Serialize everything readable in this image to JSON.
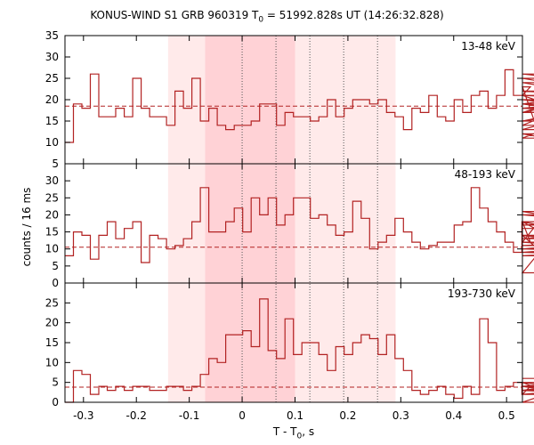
{
  "title": {
    "prefix": "KONUS-WIND S1 GRB 960319 T",
    "sub": "0",
    "suffix": " = 51992.828s UT (14:26:32.828)"
  },
  "axes": {
    "ylabel": "counts / 16 ms",
    "xlabel_prefix": "T - T",
    "xlabel_sub": "0",
    "xlabel_suffix": ", s"
  },
  "colors": {
    "line": "#b22222",
    "band_light": "#ffeaea",
    "band_dark": "#ffd2d6",
    "baseline": "#b22222",
    "vline": "#555555"
  },
  "chart_data": {
    "type": "line",
    "step": "histogram",
    "bin_width_s": 0.016,
    "xlim": [
      -0.335,
      0.53
    ],
    "xticks": [
      -0.3,
      -0.2,
      -0.1,
      0,
      0.1,
      0.2,
      0.3,
      0.4,
      0.5
    ],
    "xtick_labels": [
      "-0.3",
      "-0.2",
      "-0.1",
      "0",
      "0.1",
      "0.2",
      "0.3",
      "0.4",
      "0.5"
    ],
    "shaded_intervals": [
      {
        "start": -0.14,
        "end": 0.29,
        "shade": "light"
      },
      {
        "start": -0.07,
        "end": 0.1,
        "shade": "dark"
      }
    ],
    "vertical_markers": [
      0,
      0.064,
      0.128,
      0.192,
      0.256
    ],
    "panels": [
      {
        "label": "13-48 keV",
        "ylim": [
          5,
          35
        ],
        "yticks": [
          5,
          10,
          15,
          20,
          25,
          30,
          35
        ],
        "baseline": 18.5,
        "values": [
          10,
          19,
          18,
          26,
          16,
          16,
          18,
          16,
          25,
          18,
          16,
          16,
          14,
          22,
          18,
          25,
          15,
          18,
          14,
          13,
          14,
          14,
          15,
          19,
          19,
          14,
          17,
          16,
          16,
          15,
          16,
          20,
          16,
          18,
          20,
          20,
          19,
          20,
          17,
          16,
          13,
          18,
          17,
          21,
          16,
          15,
          20,
          17,
          21,
          22,
          18,
          21,
          27,
          21,
          21,
          23,
          12,
          11,
          14,
          18,
          19,
          17,
          22,
          21,
          21,
          21,
          13,
          20,
          19,
          18,
          17,
          24,
          18,
          20,
          15,
          21,
          19,
          25,
          17,
          17,
          18,
          15,
          26,
          20
        ]
      },
      {
        "label": "48-193 keV",
        "ylim": [
          0,
          35
        ],
        "yticks": [
          0,
          5,
          10,
          15,
          20,
          25,
          30
        ],
        "baseline": 10.5,
        "values": [
          8,
          15,
          14,
          7,
          14,
          18,
          13,
          16,
          18,
          6,
          14,
          13,
          10,
          11,
          13,
          18,
          28,
          15,
          15,
          18,
          22,
          15,
          25,
          20,
          25,
          17,
          20,
          25,
          25,
          19,
          20,
          17,
          14,
          15,
          24,
          19,
          10,
          12,
          14,
          19,
          15,
          12,
          10,
          11,
          12,
          12,
          17,
          18,
          28,
          22,
          18,
          15,
          12,
          9,
          18,
          12,
          18,
          14,
          14,
          3,
          21,
          18,
          14,
          11,
          12,
          12,
          10,
          10,
          9,
          8,
          10,
          10,
          11,
          12,
          10,
          11,
          12,
          9,
          13,
          17,
          20,
          14,
          10,
          16
        ]
      },
      {
        "label": "193-730 keV",
        "ylim": [
          0,
          30
        ],
        "yticks": [
          0,
          5,
          10,
          15,
          20,
          25
        ],
        "baseline": 3.8,
        "values": [
          0,
          8,
          7,
          2,
          4,
          3,
          4,
          3,
          4,
          4,
          3,
          3,
          4,
          4,
          3,
          4,
          7,
          11,
          10,
          17,
          17,
          18,
          14,
          26,
          13,
          11,
          21,
          12,
          15,
          15,
          12,
          8,
          14,
          12,
          15,
          17,
          16,
          12,
          17,
          11,
          8,
          3,
          2,
          3,
          4,
          2,
          1,
          4,
          2,
          21,
          15,
          3,
          4,
          5,
          2,
          4,
          4,
          3,
          4,
          5,
          0,
          5,
          3,
          2,
          2,
          4,
          3,
          2,
          4,
          4,
          2,
          2,
          3,
          4,
          3,
          3,
          3,
          4,
          3,
          3,
          3,
          2,
          4,
          6
        ]
      }
    ]
  }
}
